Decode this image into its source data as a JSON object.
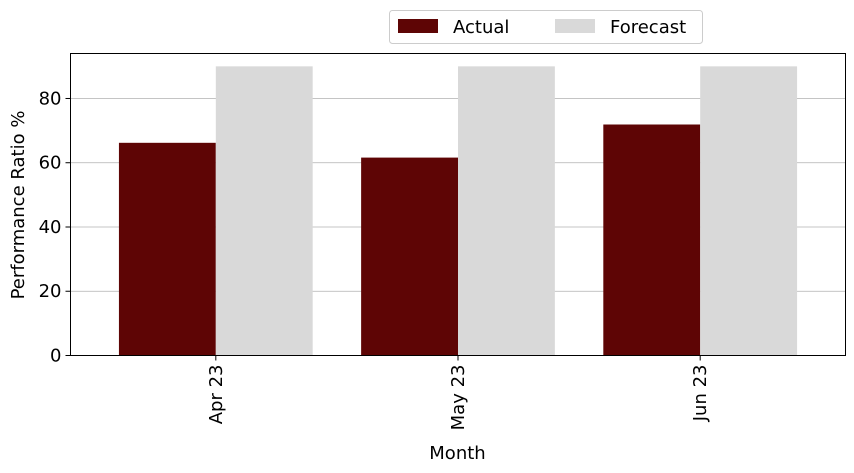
{
  "chart_data": {
    "type": "bar",
    "categories": [
      "Apr 23",
      "May 23",
      "Jun 23"
    ],
    "series": [
      {
        "name": "Actual",
        "values": [
          66.2,
          61.6,
          71.9
        ],
        "color": "#5e0505"
      },
      {
        "name": "Forecast",
        "values": [
          90,
          90,
          90
        ],
        "color": "#d9d9d9"
      }
    ],
    "xlabel": "Month",
    "ylabel": "Performance Ratio %",
    "ylim": [
      0,
      94
    ],
    "yticks": [
      0,
      20,
      40,
      60,
      80
    ],
    "grid": "horizontal",
    "legend_position": "top-center, above plot"
  }
}
